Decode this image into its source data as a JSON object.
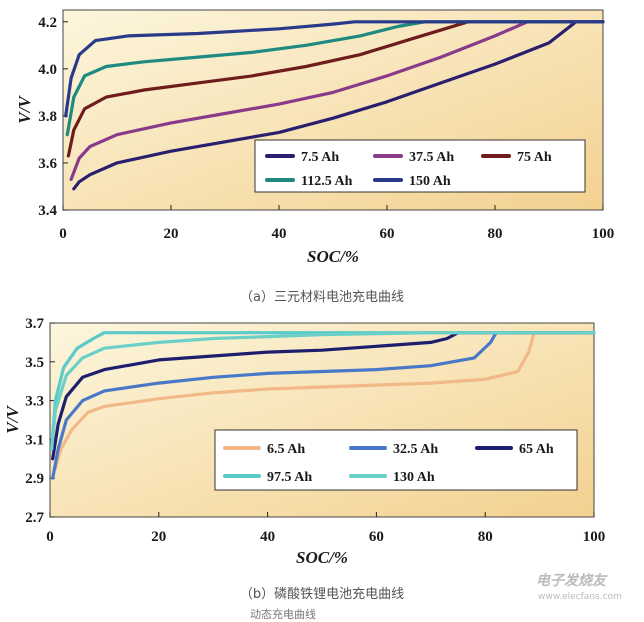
{
  "captions": {
    "a": "（a）三元材料电池充电曲线",
    "b": "（b）磷酸铁锂电池充电曲线",
    "footer": "动态充电曲线"
  },
  "watermark": {
    "name": "电子发烧友",
    "url": "www.elecfans.com"
  },
  "colors": {
    "bg_gradient_start": "#fbf2d2",
    "bg_gradient_end": "#f3d28f",
    "legend_bg": "#ffffff"
  },
  "chart_data": [
    {
      "type": "line",
      "title": "（a）三元材料电池充电曲线",
      "xlabel": "SOC/%",
      "ylabel": "V/V",
      "xlim": [
        0,
        100
      ],
      "ylim": [
        3.4,
        4.25
      ],
      "xticks": [
        0,
        20,
        40,
        60,
        80,
        100
      ],
      "xtick_labels": [
        "0",
        "20",
        "40",
        "60",
        "80",
        "100"
      ],
      "yticks": [
        3.4,
        3.6,
        3.8,
        4.0,
        4.2
      ],
      "ytick_labels": [
        "3.4",
        "3.6",
        "3.8",
        "4.0",
        "4.2"
      ],
      "legend_position": "bottom-right",
      "series": [
        {
          "name": "7.5 Ah",
          "color": "#2a1e6e",
          "x": [
            2,
            3,
            5,
            10,
            20,
            30,
            40,
            50,
            60,
            70,
            80,
            90,
            95,
            100
          ],
          "y": [
            3.49,
            3.52,
            3.55,
            3.6,
            3.65,
            3.69,
            3.73,
            3.79,
            3.86,
            3.94,
            4.02,
            4.11,
            4.2,
            4.2
          ]
        },
        {
          "name": "37.5 Ah",
          "color": "#8a3a8a",
          "x": [
            1.5,
            3,
            5,
            10,
            20,
            30,
            40,
            50,
            60,
            70,
            80,
            86,
            100
          ],
          "y": [
            3.53,
            3.62,
            3.67,
            3.72,
            3.77,
            3.81,
            3.85,
            3.9,
            3.97,
            4.05,
            4.14,
            4.2,
            4.2
          ]
        },
        {
          "name": "75 Ah",
          "color": "#6e1c1c",
          "x": [
            1,
            2,
            4,
            8,
            15,
            25,
            35,
            45,
            55,
            65,
            75,
            76,
            100
          ],
          "y": [
            3.63,
            3.74,
            3.83,
            3.88,
            3.91,
            3.94,
            3.97,
            4.01,
            4.06,
            4.13,
            4.2,
            4.2,
            4.2
          ]
        },
        {
          "name": "112.5 Ah",
          "color": "#1e8a80",
          "x": [
            0.8,
            2,
            4,
            8,
            15,
            25,
            35,
            45,
            55,
            62,
            67,
            100
          ],
          "y": [
            3.72,
            3.88,
            3.97,
            4.01,
            4.03,
            4.05,
            4.07,
            4.1,
            4.14,
            4.18,
            4.2,
            4.2
          ]
        },
        {
          "name": "150 Ah",
          "color": "#2a3a8a",
          "x": [
            0.5,
            1.5,
            3,
            6,
            12,
            25,
            40,
            50,
            54,
            100
          ],
          "y": [
            3.8,
            3.96,
            4.06,
            4.12,
            4.14,
            4.15,
            4.17,
            4.19,
            4.2,
            4.2
          ]
        }
      ]
    },
    {
      "type": "line",
      "title": "（b）磷酸铁锂电池充电曲线",
      "xlabel": "SOC/%",
      "ylabel": "V/V",
      "xlim": [
        0,
        100
      ],
      "ylim": [
        2.7,
        3.7
      ],
      "xticks": [
        0,
        20,
        40,
        60,
        80,
        100
      ],
      "xtick_labels": [
        "0",
        "20",
        "40",
        "60",
        "80",
        "100"
      ],
      "yticks": [
        2.7,
        2.9,
        3.1,
        3.3,
        3.5,
        3.7
      ],
      "ytick_labels": [
        "2.7",
        "2.9",
        "3.1",
        "3.3",
        "3.5",
        "3.7"
      ],
      "legend_position": "bottom-right",
      "series": [
        {
          "name": "6.5 Ah",
          "color": "#f2b888",
          "x": [
            1,
            2,
            4,
            7,
            10,
            20,
            30,
            40,
            50,
            60,
            70,
            80,
            86,
            88,
            89,
            100
          ],
          "y": [
            2.95,
            3.05,
            3.15,
            3.24,
            3.27,
            3.31,
            3.34,
            3.36,
            3.37,
            3.38,
            3.39,
            3.41,
            3.45,
            3.55,
            3.65,
            3.65
          ]
        },
        {
          "name": "32.5 Ah",
          "color": "#4a78c8",
          "x": [
            0.5,
            1.5,
            3,
            6,
            10,
            20,
            30,
            40,
            50,
            60,
            70,
            78,
            81,
            82,
            100
          ],
          "y": [
            2.9,
            3.05,
            3.2,
            3.3,
            3.35,
            3.39,
            3.42,
            3.44,
            3.45,
            3.46,
            3.48,
            3.52,
            3.6,
            3.65,
            3.65
          ]
        },
        {
          "name": "65 Ah",
          "color": "#1e1e6e",
          "x": [
            0.5,
            1.5,
            3,
            6,
            10,
            20,
            30,
            40,
            50,
            60,
            70,
            73,
            75,
            100
          ],
          "y": [
            3.0,
            3.18,
            3.32,
            3.42,
            3.46,
            3.51,
            3.53,
            3.55,
            3.56,
            3.58,
            3.6,
            3.62,
            3.65,
            3.65
          ]
        },
        {
          "name": "97.5 Ah",
          "color": "#5acaca",
          "x": [
            0.3,
            1,
            2.5,
            5,
            8,
            10,
            100
          ],
          "y": [
            3.05,
            3.3,
            3.47,
            3.57,
            3.62,
            3.65,
            3.65
          ]
        },
        {
          "name": "130 Ah",
          "color": "#6ad0c8",
          "x": [
            0.3,
            1,
            3,
            6,
            10,
            20,
            30,
            40,
            50,
            60,
            70,
            100
          ],
          "y": [
            3.05,
            3.25,
            3.43,
            3.52,
            3.57,
            3.6,
            3.62,
            3.63,
            3.64,
            3.645,
            3.65,
            3.65
          ]
        }
      ]
    }
  ]
}
